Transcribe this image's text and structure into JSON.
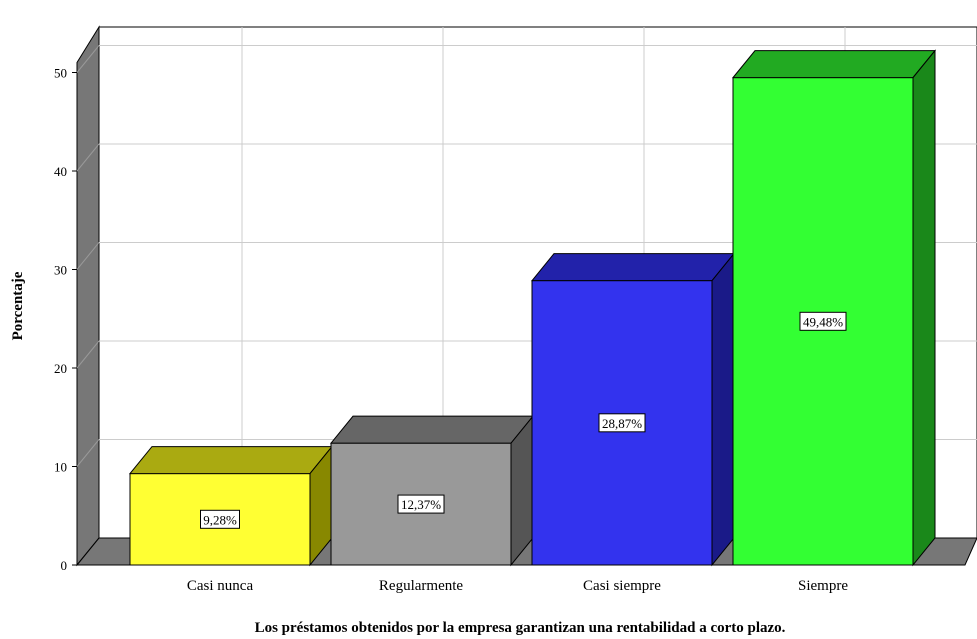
{
  "chart_data": {
    "type": "bar",
    "categories": [
      "Casi nunca",
      "Regularmente",
      "Casi siempre",
      "Siempre"
    ],
    "values": [
      9.28,
      12.37,
      28.87,
      49.48
    ],
    "data_labels": [
      "9,28%",
      "12,37%",
      "28,87%",
      "49,48%"
    ],
    "xlabel": "Los préstamos obtenidos por la empresa garantizan una rentabilidad a corto plazo.",
    "ylabel": "Porcentaje",
    "ylim": [
      0,
      50
    ],
    "yticks": [
      "0",
      "10",
      "20",
      "30",
      "40",
      "50"
    ],
    "grid": true,
    "three_d": true,
    "colors": {
      "bars": [
        "#ffff33",
        "#999999",
        "#3333ee",
        "#33ff33"
      ],
      "bar_tops": [
        "#aaaa11",
        "#666666",
        "#2222aa",
        "#22aa22"
      ],
      "bar_sides": [
        "#888800",
        "#555555",
        "#1a1a88",
        "#1a881a"
      ],
      "wall": "#777777",
      "grid": "#cccccc"
    }
  }
}
